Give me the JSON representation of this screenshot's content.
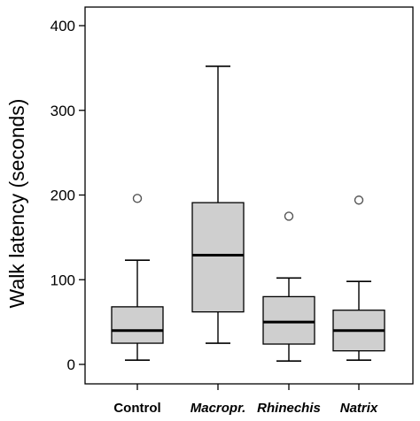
{
  "chart_data": {
    "type": "boxplot",
    "title": "",
    "xlabel": "",
    "ylabel": "Walk latency (seconds)",
    "ylim": [
      -20,
      410
    ],
    "yticks": [
      0,
      100,
      200,
      300,
      400
    ],
    "ytick_labels": [
      "0",
      "100",
      "200",
      "300",
      "400"
    ],
    "grid": false,
    "box_fill": "#cfcfcf",
    "line_color": "#000000",
    "groups": [
      {
        "label": "Control",
        "italic": false,
        "whisker_low": 5,
        "q1": 25,
        "median": 40,
        "q3": 68,
        "whisker_high": 123,
        "outliers": [
          196
        ]
      },
      {
        "label": "Macropr.",
        "italic": true,
        "whisker_low": 25,
        "q1": 62,
        "median": 129,
        "q3": 191,
        "whisker_high": 352,
        "outliers": []
      },
      {
        "label": "Rhinechis",
        "italic": true,
        "whisker_low": 4,
        "q1": 24,
        "median": 50,
        "q3": 80,
        "whisker_high": 102,
        "outliers": [
          175
        ]
      },
      {
        "label": "Natrix",
        "italic": true,
        "whisker_low": 5,
        "q1": 16,
        "median": 40,
        "q3": 64,
        "whisker_high": 98,
        "outliers": [
          194
        ]
      }
    ]
  }
}
